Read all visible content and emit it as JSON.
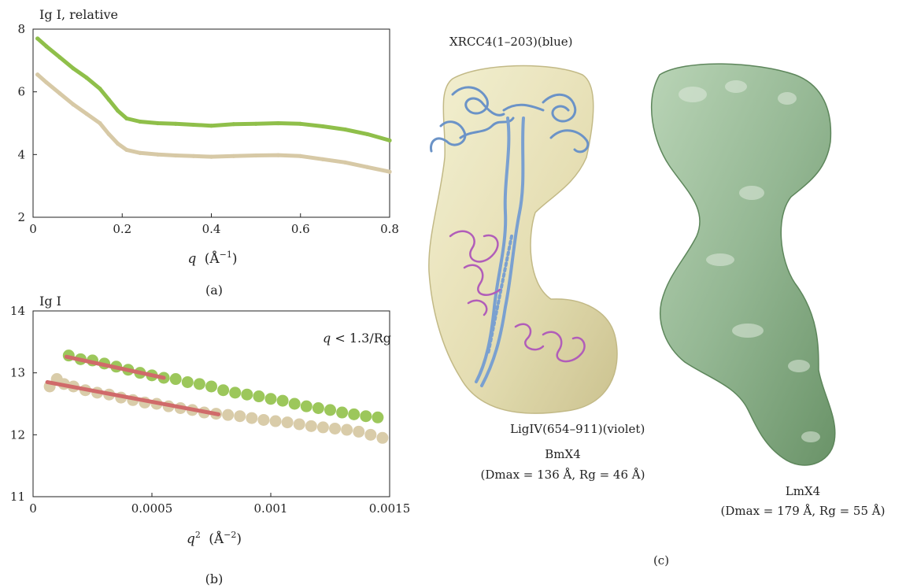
{
  "chart_data": [
    {
      "type": "scatter",
      "panel_label": "(a)",
      "ylabel": "Ig I, relative",
      "xlabel_var": "q",
      "xlabel_unit": "(Å",
      "xlabel_exp": "−1",
      "xlabel_close": ")",
      "xlim": [
        0,
        0.8
      ],
      "ylim": [
        2,
        8
      ],
      "xticks": [
        "0",
        "0.2",
        "0.4",
        "0.6",
        "0.8"
      ],
      "xtick_values": [
        0,
        0.2,
        0.4,
        0.6,
        0.8
      ],
      "yticks": [
        "2",
        "4",
        "6",
        "8"
      ],
      "ytick_values": [
        2,
        4,
        6,
        8
      ],
      "grid": false,
      "series": [
        {
          "color": "#8fbf4a",
          "x": [
            0.01,
            0.03,
            0.06,
            0.09,
            0.12,
            0.15,
            0.17,
            0.19,
            0.21,
            0.24,
            0.28,
            0.32,
            0.36,
            0.4,
            0.45,
            0.5,
            0.55,
            0.6,
            0.65,
            0.7,
            0.75,
            0.8
          ],
          "y": [
            7.7,
            7.45,
            7.1,
            6.75,
            6.45,
            6.1,
            5.75,
            5.4,
            5.15,
            5.05,
            5.0,
            4.98,
            4.95,
            4.92,
            4.97,
            4.98,
            5.0,
            4.98,
            4.9,
            4.8,
            4.65,
            4.45
          ]
        },
        {
          "color": "#d7c9a6",
          "x": [
            0.01,
            0.03,
            0.06,
            0.09,
            0.12,
            0.15,
            0.17,
            0.19,
            0.21,
            0.24,
            0.28,
            0.32,
            0.36,
            0.4,
            0.45,
            0.5,
            0.55,
            0.6,
            0.65,
            0.7,
            0.75,
            0.8
          ],
          "y": [
            6.55,
            6.3,
            5.95,
            5.6,
            5.3,
            5.0,
            4.65,
            4.35,
            4.15,
            4.05,
            4.0,
            3.97,
            3.95,
            3.93,
            3.95,
            3.97,
            3.98,
            3.95,
            3.85,
            3.75,
            3.6,
            3.45
          ]
        }
      ]
    },
    {
      "type": "scatter",
      "panel_label": "(b)",
      "ylabel": "Ig I",
      "xlabel_var": "q",
      "xlabel_sup": "2",
      "xlabel_unit": "(Å",
      "xlabel_exp": "−2",
      "xlabel_close": ")",
      "annotation_var": "q",
      "annotation_rest": " < 1.3/Rg",
      "xlim": [
        0,
        0.0015
      ],
      "ylim": [
        11,
        14
      ],
      "xticks": [
        "0",
        "0.0005",
        "0.001",
        "0.0015"
      ],
      "xtick_values": [
        0,
        0.0005,
        0.001,
        0.0015
      ],
      "yticks": [
        "11",
        "12",
        "13",
        "14"
      ],
      "ytick_values": [
        11,
        12,
        13,
        14
      ],
      "grid": false,
      "series": [
        {
          "color": "#9cc75b",
          "x": [
            0.00015,
            0.0002,
            0.00025,
            0.0003,
            0.00035,
            0.0004,
            0.00045,
            0.0005,
            0.00055,
            0.0006,
            0.00065,
            0.0007,
            0.00075,
            0.0008,
            0.00085,
            0.0009,
            0.00095,
            0.001,
            0.00105,
            0.0011,
            0.00115,
            0.0012,
            0.00125,
            0.0013,
            0.00135,
            0.0014,
            0.00145
          ],
          "y": [
            13.28,
            13.22,
            13.2,
            13.15,
            13.1,
            13.05,
            13.0,
            12.96,
            12.92,
            12.9,
            12.85,
            12.82,
            12.78,
            12.72,
            12.68,
            12.65,
            12.62,
            12.58,
            12.55,
            12.5,
            12.46,
            12.43,
            12.4,
            12.36,
            12.33,
            12.3,
            12.28
          ]
        },
        {
          "color": "#d9cca9",
          "x": [
            7e-05,
            0.0001,
            0.00013,
            0.00017,
            0.00022,
            0.00027,
            0.00032,
            0.00037,
            0.00042,
            0.00047,
            0.00052,
            0.00057,
            0.00062,
            0.00067,
            0.00072,
            0.00077,
            0.00082,
            0.00087,
            0.00092,
            0.00097,
            0.00102,
            0.00107,
            0.00112,
            0.00117,
            0.00122,
            0.00127,
            0.00132,
            0.00137,
            0.00142,
            0.00147
          ],
          "y": [
            12.78,
            12.9,
            12.82,
            12.78,
            12.72,
            12.68,
            12.65,
            12.6,
            12.56,
            12.52,
            12.5,
            12.46,
            12.43,
            12.4,
            12.36,
            12.34,
            12.32,
            12.3,
            12.27,
            12.24,
            12.22,
            12.2,
            12.17,
            12.14,
            12.12,
            12.1,
            12.08,
            12.05,
            12.0,
            11.95
          ]
        }
      ],
      "fit_lines": [
        {
          "color": "#d06a6a",
          "x": [
            0.00014,
            0.00055
          ],
          "y": [
            13.26,
            12.92
          ]
        },
        {
          "color": "#d06a6a",
          "x": [
            6e-05,
            0.00078
          ],
          "y": [
            12.85,
            12.33
          ]
        }
      ]
    }
  ],
  "panel_c": {
    "label": "(c)",
    "xrcc4_label": "XRCC4(1–203)(blue)",
    "ligiv_label": "LigIV(654–911)(violet)",
    "bm_name": "BmX4",
    "bm_stats": "(Dmax = 136 Å, Rg = 46 Å)",
    "lm_name": "LmX4",
    "lm_stats": "(Dmax = 179 Å, Rg = 55 Å)",
    "colors": {
      "bm_envelope": "#e2dcaa",
      "xrcc4": "#6b93c7",
      "ligiv": "#b15db9",
      "lm_envelope": "#8db08c"
    }
  }
}
